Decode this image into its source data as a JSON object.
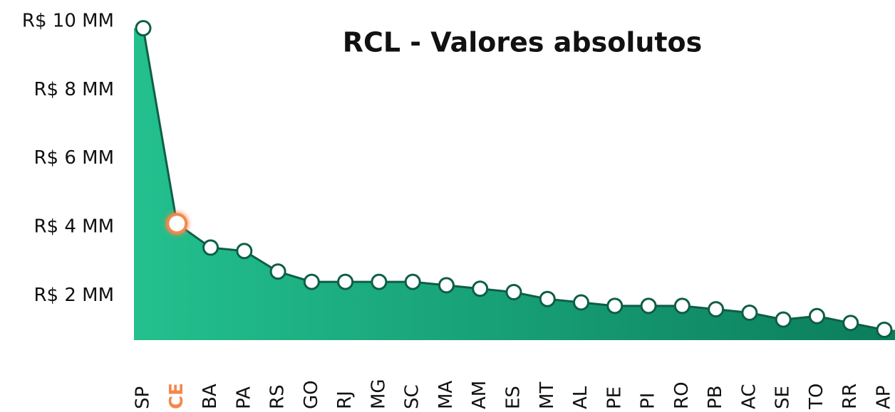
{
  "chart_data": {
    "type": "area-line",
    "title": "RCL - Valores absolutos",
    "categories": [
      "SP",
      "CE",
      "BA",
      "PA",
      "RS",
      "GO",
      "RJ",
      "MG",
      "SC",
      "MA",
      "AM",
      "ES",
      "MT",
      "AL",
      "PE",
      "PI",
      "RO",
      "PB",
      "AC",
      "SE",
      "TO",
      "RR",
      "AP"
    ],
    "values": [
      9.8,
      4.1,
      3.4,
      3.3,
      2.7,
      2.4,
      2.4,
      2.4,
      2.4,
      2.3,
      2.2,
      2.1,
      1.9,
      1.8,
      1.7,
      1.7,
      1.7,
      1.6,
      1.5,
      1.3,
      1.4,
      1.2,
      1.0
    ],
    "ylim": [
      0.7,
      10
    ],
    "yticks": [
      {
        "value": 2,
        "label": "R$ 2 MM"
      },
      {
        "value": 4,
        "label": "R$ 4 MM"
      },
      {
        "value": 6,
        "label": "R$ 6 MM"
      },
      {
        "value": 8,
        "label": "R$ 8 MM"
      },
      {
        "value": 10,
        "label": "R$ 10 MM"
      }
    ],
    "color": "#0e5e46",
    "fill_colors": [
      "#23c08e",
      "#0b7d5b"
    ],
    "highlight_index": 1,
    "highlight_color": "#f4874b",
    "grid": false
  }
}
